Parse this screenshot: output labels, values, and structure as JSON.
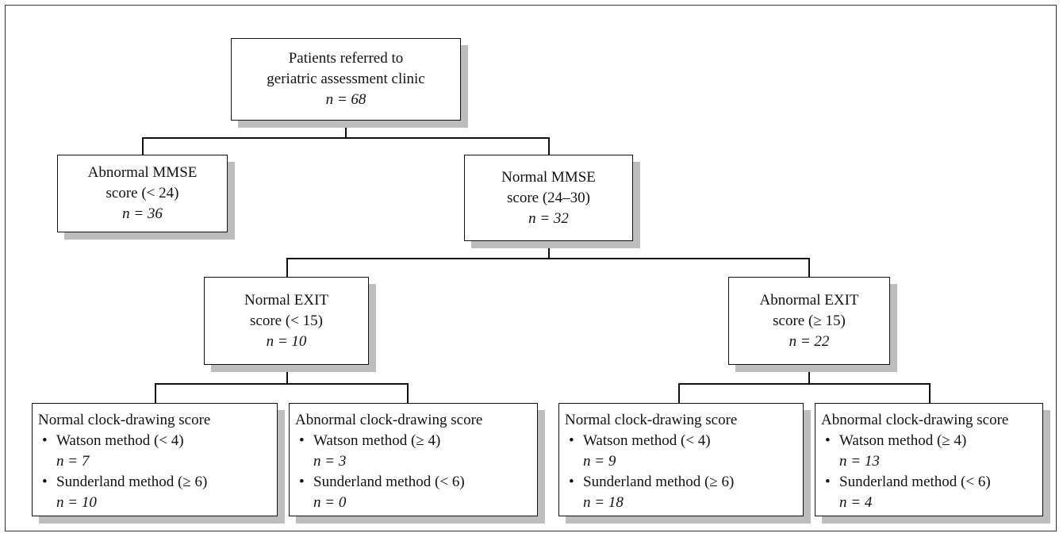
{
  "root": {
    "line1": "Patients referred to",
    "line2": "geriatric assessment clinic",
    "n": "n = 68"
  },
  "abnormal_mmse": {
    "line1": "Abnormal MMSE",
    "line2": "score (< 24)",
    "n": "n = 36"
  },
  "normal_mmse": {
    "line1": "Normal MMSE",
    "line2": "score (24–30)",
    "n": "n = 32"
  },
  "normal_exit": {
    "line1": "Normal EXIT",
    "line2": "score (< 15)",
    "n": "n = 10"
  },
  "abnormal_exit": {
    "line1": "Abnormal EXIT",
    "line2": "score (≥ 15)",
    "n": "n = 22"
  },
  "leaves": [
    {
      "title": "Normal clock-drawing score",
      "b1": "Watson method (< 4)",
      "n1": "n = 7",
      "b2": "Sunderland method (≥ 6)",
      "n2": "n = 10"
    },
    {
      "title": "Abnormal clock-drawing score",
      "b1": "Watson method (≥ 4)",
      "n1": "n = 3",
      "b2": "Sunderland method (< 6)",
      "n2": "n = 0"
    },
    {
      "title": "Normal clock-drawing score",
      "b1": "Watson method (< 4)",
      "n1": "n = 9",
      "b2": "Sunderland method (≥ 6)",
      "n2": "n = 18"
    },
    {
      "title": "Abnormal clock-drawing score",
      "b1": "Watson method (≥ 4)",
      "n1": "n = 13",
      "b2": "Sunderland method (< 6)",
      "n2": "n = 4"
    }
  ]
}
